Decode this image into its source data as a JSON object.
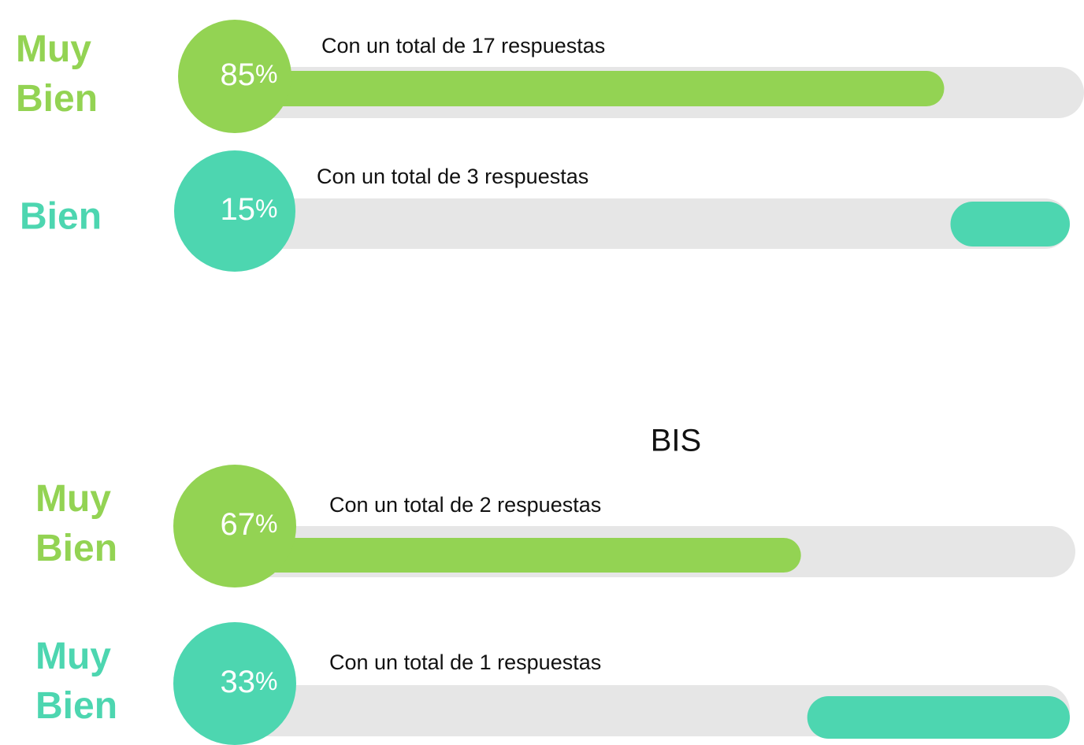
{
  "sections": [
    {
      "title": null,
      "rows": [
        {
          "label_lines": [
            "Muy",
            "Bien"
          ],
          "percent": 85,
          "unit": "%",
          "caption": "Con un total de 17 respuestas",
          "color": "#93d353",
          "fill_from": "left"
        },
        {
          "label_lines": [
            "Bien"
          ],
          "percent": 15,
          "unit": "%",
          "caption": "Con un total de 3 respuestas",
          "color": "#4dd6b0",
          "fill_from": "right"
        }
      ]
    },
    {
      "title": "BIS",
      "rows": [
        {
          "label_lines": [
            "Muy",
            "Bien"
          ],
          "percent": 67,
          "unit": "%",
          "caption": "Con un total de 2 respuestas",
          "color": "#93d353",
          "fill_from": "left"
        },
        {
          "label_lines": [
            "Muy",
            "Bien"
          ],
          "percent": 33,
          "unit": "%",
          "caption": "Con un total de 1 respuestas",
          "color": "#4dd6b0",
          "fill_from": "right"
        }
      ]
    }
  ]
}
